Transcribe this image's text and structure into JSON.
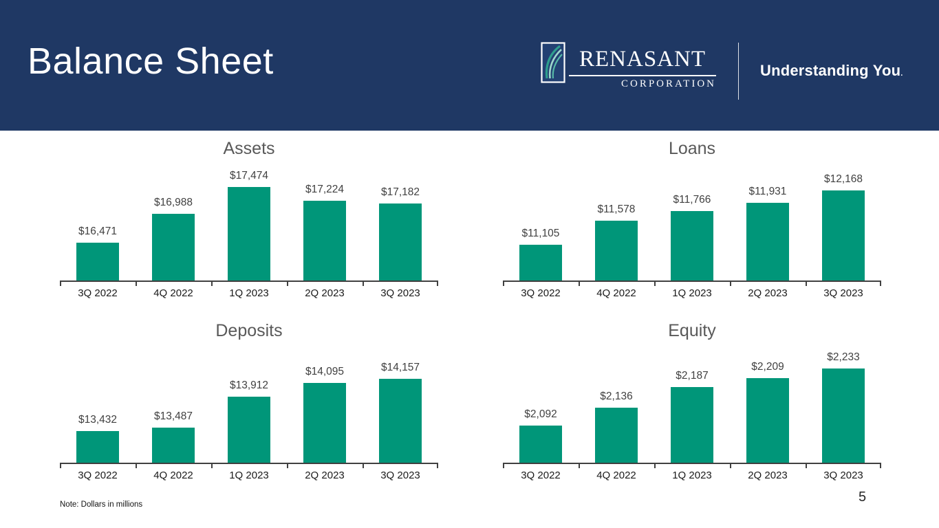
{
  "slide": {
    "title": "Balance Sheet",
    "note": "Note: Dollars in millions",
    "page_number": "5"
  },
  "logo": {
    "name": "RENASANT",
    "subname": "CORPORATION",
    "tagline": "Understanding You",
    "tagline_mark": "."
  },
  "colors": {
    "header_bg": "#1f3864",
    "bar": "#009679",
    "chart_title": "#595959",
    "data_label": "#404040",
    "axis": "#404040",
    "logo_swoosh_dark": "#2f9e8e",
    "logo_swoosh_mid": "#57b9a8",
    "logo_swoosh_light": "#9fd8cd"
  },
  "chart_data": [
    {
      "type": "bar",
      "title": "Assets",
      "categories": [
        "3Q 2022",
        "4Q 2022",
        "1Q 2023",
        "2Q 2023",
        "3Q 2023"
      ],
      "values": [
        16471,
        16988,
        17474,
        17224,
        17182
      ],
      "labels": [
        "$16,471",
        "$16,988",
        "$17,474",
        "$17,224",
        "$17,182"
      ],
      "ylim": [
        15800,
        17620
      ],
      "xlabel": "",
      "ylabel": "",
      "grid": false,
      "legend": "none",
      "units": "dollars in millions"
    },
    {
      "type": "bar",
      "title": "Loans",
      "categories": [
        "3Q 2022",
        "4Q 2022",
        "1Q 2023",
        "2Q 2023",
        "3Q 2023"
      ],
      "values": [
        11105,
        11578,
        11766,
        11931,
        12168
      ],
      "labels": [
        "$11,105",
        "$11,578",
        "$11,766",
        "$11,931",
        "$12,168"
      ],
      "ylim": [
        10400,
        12400
      ],
      "xlabel": "",
      "ylabel": "",
      "grid": false,
      "legend": "none",
      "units": "dollars in millions"
    },
    {
      "type": "bar",
      "title": "Deposits",
      "categories": [
        "3Q 2022",
        "4Q 2022",
        "1Q 2023",
        "2Q 2023",
        "3Q 2023"
      ],
      "values": [
        13432,
        13487,
        13912,
        14095,
        14157
      ],
      "labels": [
        "$13,432",
        "$13,487",
        "$13,912",
        "$14,095",
        "$14,157"
      ],
      "ylim": [
        13000,
        14400
      ],
      "xlabel": "",
      "ylabel": "",
      "grid": false,
      "legend": "none",
      "units": "dollars in millions"
    },
    {
      "type": "bar",
      "title": "Equity",
      "categories": [
        "3Q 2022",
        "4Q 2022",
        "1Q 2023",
        "2Q 2023",
        "3Q 2023"
      ],
      "values": [
        2092,
        2136,
        2187,
        2209,
        2233
      ],
      "labels": [
        "$2,092",
        "$2,136",
        "$2,187",
        "$2,209",
        "$2,233"
      ],
      "ylim": [
        2000,
        2252
      ],
      "xlabel": "",
      "ylabel": "",
      "grid": false,
      "legend": "none",
      "units": "dollars in millions"
    }
  ]
}
